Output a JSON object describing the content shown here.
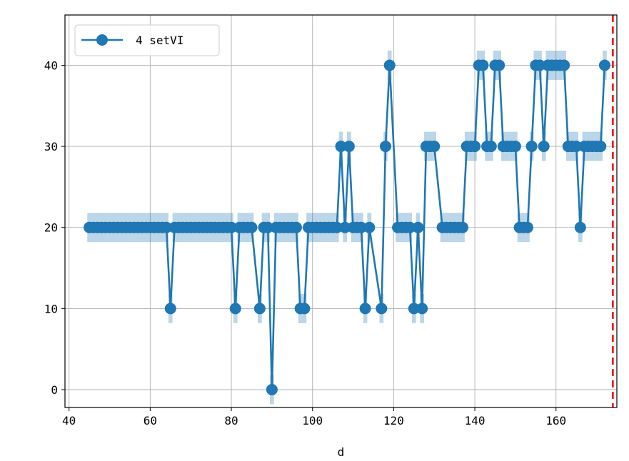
{
  "chart_data": {
    "type": "line",
    "title": "",
    "xlabel": "d",
    "ylabel": "",
    "xlim": [
      39,
      175
    ],
    "ylim": [
      -2.2,
      46.2
    ],
    "x_ticks": [
      40,
      60,
      80,
      100,
      120,
      140,
      160
    ],
    "y_ticks": [
      0,
      10,
      20,
      30,
      40
    ],
    "grid": true,
    "legend_position": "top-left",
    "series": [
      {
        "name": "4 setVI",
        "color": "#1f77b4",
        "marker": "circle",
        "x": [
          45,
          46,
          47,
          48,
          49,
          50,
          51,
          52,
          53,
          54,
          55,
          56,
          57,
          58,
          59,
          60,
          61,
          62,
          63,
          64,
          65,
          66,
          67,
          68,
          69,
          70,
          71,
          72,
          73,
          74,
          75,
          76,
          77,
          78,
          79,
          80,
          81,
          82,
          83,
          84,
          85,
          87,
          88,
          89,
          90,
          91,
          92,
          93,
          94,
          95,
          96,
          97,
          98,
          99,
          100,
          101,
          102,
          103,
          104,
          105,
          106,
          107,
          108,
          109,
          110,
          111,
          112,
          113,
          114,
          117,
          118,
          119,
          121,
          122,
          123,
          124,
          125,
          126,
          127,
          128,
          129,
          130,
          132,
          133,
          134,
          135,
          136,
          137,
          138,
          139,
          140,
          141,
          142,
          143,
          144,
          145,
          146,
          147,
          148,
          149,
          150,
          151,
          152,
          153,
          154,
          155,
          156,
          157,
          158,
          159,
          160,
          161,
          162,
          163,
          164,
          165,
          166,
          167,
          168,
          169,
          170,
          171,
          172
        ],
        "y": [
          20,
          20,
          20,
          20,
          20,
          20,
          20,
          20,
          20,
          20,
          20,
          20,
          20,
          20,
          20,
          20,
          20,
          20,
          20,
          20,
          10,
          20,
          20,
          20,
          20,
          20,
          20,
          20,
          20,
          20,
          20,
          20,
          20,
          20,
          20,
          20,
          10,
          20,
          20,
          20,
          20,
          10,
          20,
          20,
          0,
          20,
          20,
          20,
          20,
          20,
          20,
          10,
          10,
          20,
          20,
          20,
          20,
          20,
          20,
          20,
          20,
          30,
          20,
          30,
          20,
          20,
          20,
          10,
          20,
          10,
          30,
          40,
          20,
          20,
          20,
          20,
          10,
          20,
          10,
          30,
          30,
          30,
          20,
          20,
          20,
          20,
          20,
          20,
          30,
          30,
          30,
          40,
          40,
          30,
          30,
          40,
          40,
          30,
          30,
          30,
          30,
          20,
          20,
          20,
          30,
          40,
          40,
          30,
          40,
          40,
          40,
          40,
          40,
          30,
          30,
          30,
          20,
          30,
          30,
          30,
          30,
          30,
          40
        ]
      }
    ],
    "annotations": [
      {
        "type": "vertical-line",
        "x": 174,
        "color": "#ff0000",
        "style": "dashed"
      }
    ]
  }
}
